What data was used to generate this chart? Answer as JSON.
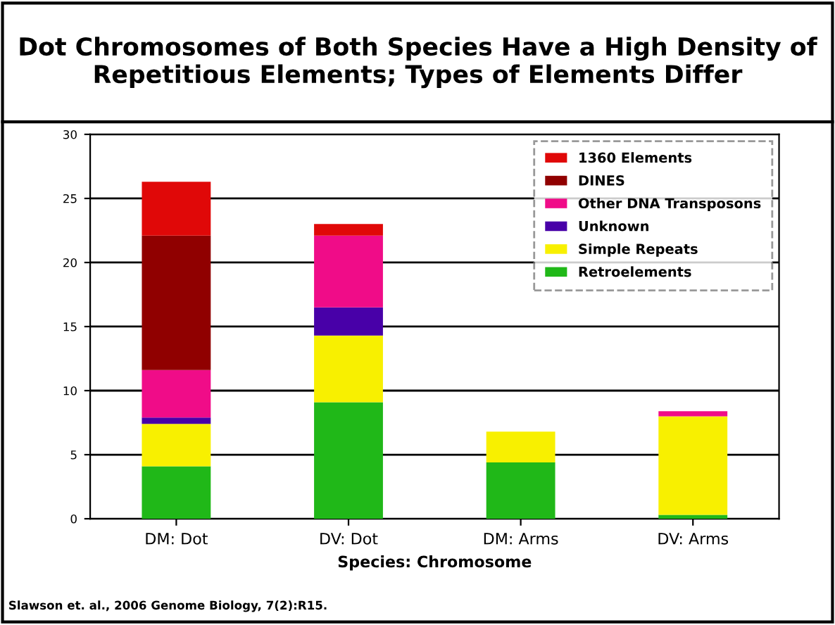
{
  "chart_data": {
    "type": "bar",
    "stacked": true,
    "title": "Dot Chromosomes of Both Species Have a High Density of Repetitious Elements; Types of Elements Differ",
    "xlabel": "Species: Chromosome",
    "categories": [
      "DM: Dot",
      "DV: Dot",
      "DM: Arms",
      "DV: Arms"
    ],
    "series": [
      {
        "name": "Retroelements",
        "color": "#20b818",
        "values": [
          4.1,
          9.1,
          4.4,
          0.3
        ]
      },
      {
        "name": "Simple Repeats",
        "color": "#f8f000",
        "values": [
          3.3,
          5.2,
          2.4,
          7.7
        ]
      },
      {
        "name": "Unknown",
        "color": "#4800a8",
        "values": [
          0.5,
          2.2,
          0,
          0
        ]
      },
      {
        "name": "Other DNA Transposons",
        "color": "#f00c88",
        "values": [
          3.7,
          5.6,
          0,
          0.4
        ]
      },
      {
        "name": "DINES",
        "color": "#900000",
        "values": [
          10.5,
          0,
          0,
          0
        ]
      },
      {
        "name": "1360 Elements",
        "color": "#e00808",
        "values": [
          4.2,
          0.9,
          0,
          0
        ]
      }
    ],
    "ylim": [
      0,
      30
    ],
    "yticks": [
      0,
      5,
      10,
      15,
      20,
      25,
      30
    ],
    "grid": "y",
    "legend": "top right",
    "annotations": [
      "Slawson et. al., 2006 Genome Biology, 7(2):R15."
    ]
  }
}
